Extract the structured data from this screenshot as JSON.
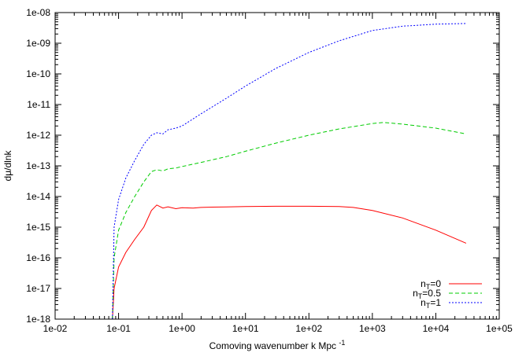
{
  "chart_data": {
    "type": "line",
    "title": "",
    "xlabel": {
      "main": "Comoving wavenumber k Mpc",
      "sup": "-1"
    },
    "ylabel": "dμ/dlnk",
    "xscale": "log",
    "yscale": "log",
    "xlim": [
      0.01,
      100000
    ],
    "ylim": [
      1e-18,
      1e-08
    ],
    "x_ticks": [
      "1e-02",
      "1e-01",
      "1e+00",
      "1e+01",
      "1e+02",
      "1e+03",
      "1e+04",
      "1e+05"
    ],
    "y_ticks": [
      "1e-18",
      "1e-17",
      "1e-16",
      "1e-15",
      "1e-14",
      "1e-13",
      "1e-12",
      "1e-11",
      "1e-10",
      "1e-09",
      "1e-08"
    ],
    "grid": false,
    "legend_position": "bottom-right",
    "series": [
      {
        "label_base": "n",
        "label_sub": "T",
        "label_rest": "=0",
        "color": "#ff0000",
        "dash": "solid",
        "x": [
          0.08,
          0.085,
          0.1,
          0.13,
          0.18,
          0.25,
          0.33,
          0.4,
          0.5,
          0.6,
          0.8,
          1.0,
          1.5,
          2,
          3,
          5,
          10,
          30,
          100,
          300,
          500,
          1000,
          3000,
          10000,
          30000
        ],
        "y": [
          1e-18,
          1e-17,
          5e-17,
          1.5e-16,
          4e-16,
          1e-15,
          3.5e-15,
          5.3e-15,
          4.2e-15,
          4.6e-15,
          4e-15,
          4.3e-15,
          4.2e-15,
          4.4e-15,
          4.5e-15,
          4.6e-15,
          4.7e-15,
          4.8e-15,
          4.8e-15,
          4.7e-15,
          4.4e-15,
          3.5e-15,
          2e-15,
          8e-16,
          3e-16
        ]
      },
      {
        "label_base": "n",
        "label_sub": "T",
        "label_rest": "=0.5",
        "color": "#00cc00",
        "dash": "dashed",
        "x": [
          0.08,
          0.085,
          0.1,
          0.13,
          0.18,
          0.25,
          0.33,
          0.4,
          0.5,
          0.6,
          0.8,
          1.0,
          2,
          5,
          10,
          30,
          100,
          300,
          1000,
          1500,
          3000,
          10000,
          30000
        ],
        "y": [
          1e-18,
          1e-16,
          8e-16,
          3e-15,
          1e-14,
          3e-14,
          6.5e-14,
          7.5e-14,
          6.8e-14,
          8e-14,
          8.5e-14,
          9.5e-14,
          1.3e-13,
          2e-13,
          3e-13,
          5.5e-13,
          1e-12,
          1.6e-12,
          2.4e-12,
          2.6e-12,
          2.3e-12,
          1.7e-12,
          1.1e-12
        ]
      },
      {
        "label_base": "n",
        "label_sub": "T",
        "label_rest": "=1",
        "color": "#0000ff",
        "dash": "dotted",
        "x": [
          0.08,
          0.085,
          0.1,
          0.13,
          0.18,
          0.25,
          0.33,
          0.4,
          0.5,
          0.6,
          0.8,
          1.0,
          2,
          5,
          10,
          30,
          100,
          300,
          1000,
          3000,
          10000,
          30000
        ],
        "y": [
          1e-18,
          1e-15,
          8e-15,
          4e-14,
          1.5e-13,
          5e-13,
          1e-12,
          1.2e-12,
          1.1e-12,
          1.5e-12,
          1.7e-12,
          2e-12,
          5e-12,
          1.6e-11,
          4e-11,
          1.5e-10,
          5e-10,
          1.2e-09,
          2.6e-09,
          3.6e-09,
          4.2e-09,
          4.4e-09
        ]
      }
    ]
  }
}
